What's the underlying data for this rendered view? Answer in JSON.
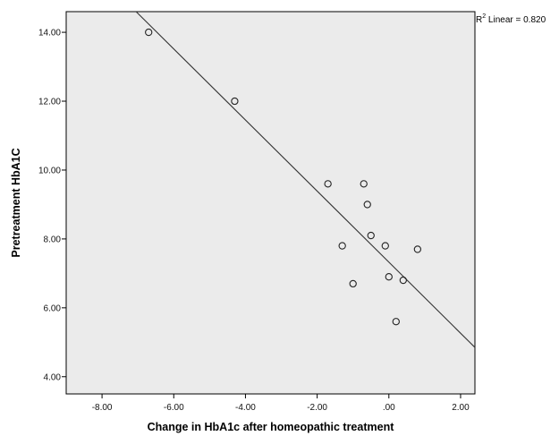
{
  "chart_data": {
    "type": "scatter",
    "title": "",
    "xlabel": "Change in HbA1c after homeopathic treatment",
    "ylabel": "Pretreatment HbA1C",
    "xlim": [
      -9.0,
      2.4
    ],
    "ylim": [
      3.5,
      14.6
    ],
    "x_ticks": [
      -8,
      -6,
      -4,
      -2,
      0,
      2
    ],
    "x_tick_labels": [
      "-8.00",
      "-6.00",
      "-4.00",
      "-2.00",
      ".00",
      "2.00"
    ],
    "y_ticks": [
      4,
      6,
      8,
      10,
      12,
      14
    ],
    "y_tick_labels": [
      "4.00",
      "6.00",
      "8.00",
      "10.00",
      "12.00",
      "14.00"
    ],
    "points": [
      {
        "x": -6.7,
        "y": 14.0
      },
      {
        "x": -4.3,
        "y": 12.0
      },
      {
        "x": -1.7,
        "y": 9.6
      },
      {
        "x": -0.7,
        "y": 9.6
      },
      {
        "x": -0.6,
        "y": 9.0
      },
      {
        "x": -1.3,
        "y": 7.8
      },
      {
        "x": -0.5,
        "y": 8.1
      },
      {
        "x": -0.1,
        "y": 7.8
      },
      {
        "x": 0.8,
        "y": 7.7
      },
      {
        "x": -1.0,
        "y": 6.7
      },
      {
        "x": 0.0,
        "y": 6.9
      },
      {
        "x": 0.4,
        "y": 6.8
      },
      {
        "x": 0.2,
        "y": 5.6
      }
    ],
    "fit_line": {
      "x": [
        -7.05,
        2.4
      ],
      "y": [
        14.6,
        4.85
      ]
    },
    "annotation": {
      "prefix": "R",
      "superscript": "2",
      "text": " Linear = 0.820"
    },
    "grid": false,
    "plot_background": "#ebebeb",
    "marker_style": "hollow-circle",
    "line_color": "#333333"
  }
}
